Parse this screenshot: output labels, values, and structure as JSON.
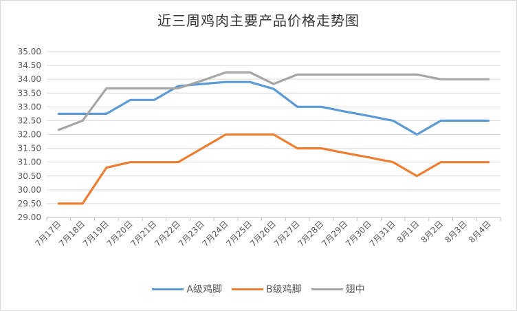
{
  "chart_data": {
    "type": "line",
    "title": "近三周鸡肉主要产品价格走势图",
    "xlabel": "",
    "ylabel": "",
    "ylim": [
      29.0,
      35.0
    ],
    "ytick_step": 0.5,
    "grid": "horizontal",
    "legend_position": "bottom",
    "categories": [
      "7月17日",
      "7月18日",
      "7月19日",
      "7月20日",
      "7月21日",
      "7月22日",
      "7月23日",
      "7月24日",
      "7月25日",
      "7月26日",
      "7月27日",
      "7月28日",
      "7月29日",
      "7月30日",
      "7月31日",
      "8月1日",
      "8月2日",
      "8月3日",
      "8月4日"
    ],
    "series": [
      {
        "name": "A级鸡脚",
        "color": "#5b9bd5",
        "values": [
          32.75,
          32.75,
          32.75,
          33.25,
          33.25,
          33.75,
          33.83,
          33.9,
          33.9,
          33.65,
          33.0,
          33.0,
          32.83,
          32.67,
          32.5,
          32.0,
          32.5,
          32.5,
          32.5
        ]
      },
      {
        "name": "B级鸡脚",
        "color": "#ed7d31",
        "values": [
          29.5,
          29.5,
          30.8,
          31.0,
          31.0,
          31.0,
          31.5,
          32.0,
          32.0,
          32.0,
          31.5,
          31.5,
          31.33,
          31.17,
          31.0,
          30.5,
          31.0,
          31.0,
          31.0
        ]
      },
      {
        "name": "翅中",
        "color": "#a5a5a5",
        "values": [
          32.17,
          32.5,
          33.67,
          33.67,
          33.67,
          33.67,
          33.95,
          34.25,
          34.25,
          33.83,
          34.17,
          34.17,
          34.17,
          34.17,
          34.17,
          34.17,
          34.0,
          34.0,
          34.0
        ]
      }
    ]
  }
}
